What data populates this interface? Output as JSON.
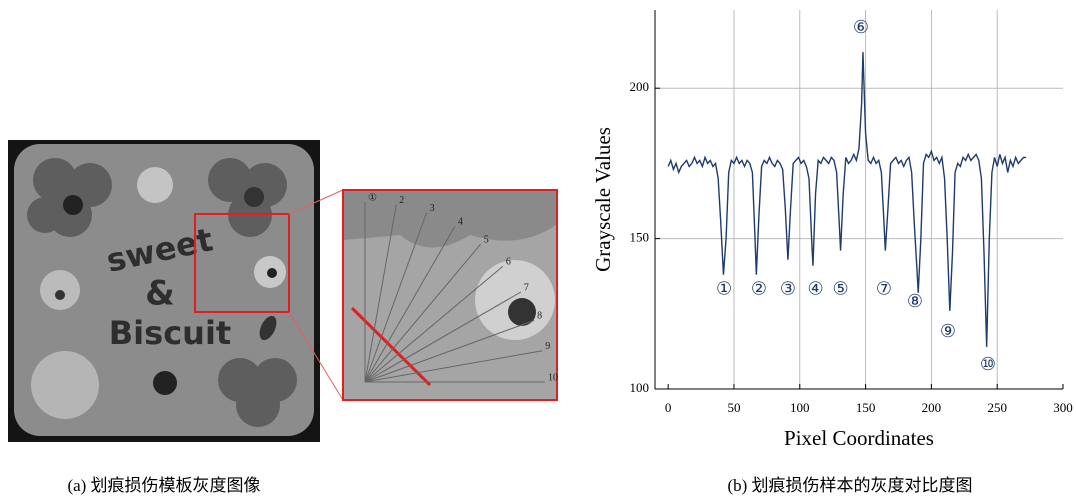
{
  "image_a": {
    "texts": [
      "sweet",
      "&",
      "Biscuit"
    ],
    "zoom_labels": [
      "①",
      "2",
      "3",
      "4",
      "5",
      "6",
      "7",
      "8",
      "9",
      "10"
    ],
    "caption": "(a)  划痕损伤模板灰度图像"
  },
  "chart_data": {
    "type": "line",
    "caption": "(b)  划痕损伤样本的灰度对比度图",
    "x_label": "Pixel Coordinates",
    "y_label": "Grayscale Values",
    "xlim": [
      -10,
      300
    ],
    "ylim": [
      100,
      226
    ],
    "xticks": [
      0,
      50,
      100,
      150,
      200,
      250,
      300
    ],
    "yticks": [
      100,
      150,
      200
    ],
    "grid": true,
    "series": [
      {
        "color": "#1f3a6e",
        "x": [
          0,
          2,
          4,
          6,
          8,
          10,
          12,
          14,
          16,
          18,
          20,
          22,
          24,
          26,
          28,
          30,
          32,
          34,
          36,
          38,
          40,
          42,
          44,
          46,
          48,
          50,
          52,
          54,
          56,
          58,
          60,
          62,
          64,
          66,
          67,
          69,
          71,
          73,
          75,
          77,
          79,
          81,
          83,
          85,
          87,
          89,
          91,
          93,
          95,
          97,
          99,
          101,
          103,
          105,
          107,
          109,
          110,
          112,
          114,
          116,
          118,
          120,
          122,
          124,
          126,
          128,
          130,
          131,
          133,
          135,
          137,
          139,
          141,
          143,
          145,
          147,
          148,
          150,
          152,
          154,
          156,
          158,
          160,
          162,
          164,
          165,
          167,
          169,
          171,
          173,
          175,
          177,
          179,
          181,
          183,
          185,
          187,
          189,
          190,
          192,
          194,
          196,
          198,
          200,
          202,
          204,
          206,
          208,
          210,
          212,
          214,
          216,
          218,
          220,
          222,
          224,
          226,
          228,
          230,
          232,
          234,
          236,
          238,
          240,
          242,
          244,
          246,
          248,
          250,
          252,
          254,
          256,
          258,
          260,
          262,
          264,
          266,
          268,
          270,
          272
        ],
        "values": [
          174,
          176,
          173,
          175,
          172,
          174,
          175,
          176,
          174,
          175,
          177,
          175,
          176,
          174,
          177,
          175,
          176,
          174,
          175,
          170,
          155,
          138,
          150,
          172,
          176,
          175,
          177,
          175,
          176,
          174,
          176,
          175,
          172,
          150,
          138,
          158,
          174,
          176,
          175,
          177,
          175,
          174,
          176,
          175,
          173,
          160,
          143,
          160,
          175,
          176,
          177,
          175,
          176,
          174,
          170,
          150,
          141,
          165,
          176,
          175,
          177,
          176,
          175,
          177,
          176,
          172,
          155,
          146,
          165,
          177,
          175,
          176,
          178,
          176,
          180,
          195,
          212,
          185,
          176,
          175,
          177,
          175,
          176,
          172,
          155,
          146,
          160,
          175,
          176,
          177,
          175,
          176,
          174,
          176,
          177,
          172,
          155,
          140,
          132,
          150,
          175,
          178,
          177,
          179,
          176,
          177,
          175,
          177,
          170,
          150,
          126,
          145,
          172,
          175,
          174,
          177,
          176,
          178,
          176,
          177,
          178,
          176,
          170,
          145,
          114,
          150,
          172,
          177,
          174,
          178,
          175,
          177,
          172,
          176,
          174,
          177,
          175,
          176,
          177,
          177
        ]
      }
    ],
    "annotations": [
      {
        "text": "①",
        "x": 42.5,
        "y": 133
      },
      {
        "text": "②",
        "x": 69,
        "y": 133
      },
      {
        "text": "③",
        "x": 91,
        "y": 133
      },
      {
        "text": "④",
        "x": 112,
        "y": 133
      },
      {
        "text": "⑤",
        "x": 131,
        "y": 133
      },
      {
        "text": "⑥",
        "x": 146.5,
        "y": 220
      },
      {
        "text": "⑦",
        "x": 164,
        "y": 133
      },
      {
        "text": "⑧",
        "x": 187.5,
        "y": 129
      },
      {
        "text": "⑨",
        "x": 212.6,
        "y": 119
      },
      {
        "text": "⑩",
        "x": 243,
        "y": 108
      }
    ]
  }
}
